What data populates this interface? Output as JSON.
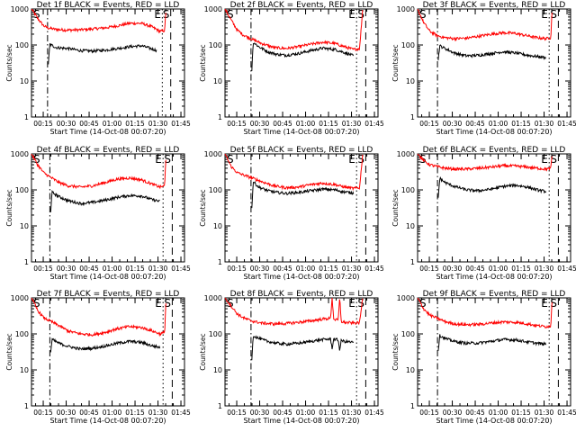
{
  "figure": {
    "colors": {
      "events": "#000000",
      "lld": "#ff0000",
      "axes": "#000000"
    },
    "y_tick_labels": [
      "1",
      "10",
      "100",
      "1000"
    ],
    "x_tick_labels": [
      "00:15",
      "00:30",
      "00:45",
      "01:00",
      "01:15",
      "01:30",
      "01:45"
    ]
  },
  "chart_data": [
    {
      "type": "line",
      "title": "Det 1f BLACK = Events, RED = LLD",
      "xlabel": "Start Time (14-Oct-08 00:07:20)",
      "ylabel": "Counts/sec",
      "yscale": "log",
      "ylim": [
        1,
        1000
      ],
      "xlim_minutes_after_start": [
        0,
        100
      ],
      "x_ticks_minutes_after_start": [
        7.67,
        22.67,
        37.67,
        52.67,
        67.67,
        82.67,
        97.67
      ],
      "markers": [
        {
          "label": "S",
          "t": 0.0,
          "style": "dash"
        },
        {
          "label": "",
          "t": 10.5,
          "style": "dashdot"
        },
        {
          "label": "E",
          "t": 85.5,
          "style": "dot"
        },
        {
          "label": "S",
          "t": 91.0,
          "style": "dash"
        }
      ],
      "series": [
        {
          "name": "LLD",
          "color": "#ff0000",
          "x": [
            0,
            4,
            8,
            10.5,
            16,
            24,
            32,
            40,
            48,
            56,
            64,
            72,
            78,
            84,
            87,
            88
          ],
          "y": [
            1000,
            550,
            340,
            300,
            270,
            260,
            265,
            280,
            300,
            340,
            400,
            400,
            330,
            240,
            250,
            1000
          ]
        },
        {
          "name": "Events",
          "color": "#000000",
          "x": [
            11,
            12,
            16,
            24,
            32,
            40,
            48,
            56,
            64,
            72,
            78,
            82
          ],
          "y": [
            30,
            105,
            85,
            80,
            70,
            68,
            72,
            80,
            90,
            95,
            80,
            70
          ]
        }
      ]
    },
    {
      "type": "line",
      "title": "Det 2f BLACK = Events, RED = LLD",
      "xlabel": "Start Time (14-Oct-08 00:07:20)",
      "ylabel": "Counts/sec",
      "yscale": "log",
      "ylim": [
        1,
        1000
      ],
      "xlim_minutes_after_start": [
        0,
        100
      ],
      "x_ticks_minutes_after_start": [
        7.67,
        22.67,
        37.67,
        52.67,
        67.67,
        82.67,
        97.67
      ],
      "markers": [
        {
          "label": "S",
          "t": 0.0,
          "style": "dash"
        },
        {
          "label": "",
          "t": 17.0,
          "style": "dashdot"
        },
        {
          "label": "E",
          "t": 86.0,
          "style": "dot"
        },
        {
          "label": "S",
          "t": 92.0,
          "style": "dash"
        }
      ],
      "series": [
        {
          "name": "LLD",
          "color": "#ff0000",
          "x": [
            0,
            4,
            8,
            12,
            17,
            24,
            32,
            40,
            48,
            56,
            64,
            72,
            78,
            84,
            88,
            90
          ],
          "y": [
            1000,
            500,
            260,
            190,
            150,
            110,
            85,
            80,
            90,
            105,
            120,
            110,
            90,
            75,
            80,
            1000
          ]
        },
        {
          "name": "Events",
          "color": "#000000",
          "x": [
            17.5,
            18.5,
            22,
            28,
            34,
            40,
            48,
            56,
            64,
            72,
            78,
            84
          ],
          "y": [
            20,
            120,
            90,
            65,
            55,
            52,
            58,
            70,
            82,
            75,
            62,
            50
          ]
        }
      ]
    },
    {
      "type": "line",
      "title": "Det 3f BLACK = Events, RED = LLD",
      "xlabel": "Start Time (14-Oct-08 00:07:20)",
      "ylabel": "Counts/sec",
      "yscale": "log",
      "ylim": [
        1,
        1000
      ],
      "xlim_minutes_after_start": [
        0,
        100
      ],
      "x_ticks_minutes_after_start": [
        7.67,
        22.67,
        37.67,
        52.67,
        67.67,
        82.67,
        97.67
      ],
      "markers": [
        {
          "label": "S",
          "t": 0.0,
          "style": "dash"
        },
        {
          "label": "",
          "t": 13.0,
          "style": "dashdot"
        },
        {
          "label": "E",
          "t": 86.0,
          "style": "dot"
        },
        {
          "label": "S",
          "t": 92.0,
          "style": "dash"
        }
      ],
      "series": [
        {
          "name": "LLD",
          "color": "#ff0000",
          "x": [
            0,
            4,
            8,
            13,
            18,
            24,
            32,
            40,
            48,
            56,
            64,
            72,
            78,
            84,
            87,
            88
          ],
          "y": [
            1000,
            420,
            240,
            180,
            160,
            150,
            155,
            175,
            200,
            220,
            210,
            180,
            160,
            150,
            160,
            1000
          ]
        },
        {
          "name": "Events",
          "color": "#000000",
          "x": [
            13.5,
            14.5,
            18,
            24,
            32,
            40,
            48,
            56,
            64,
            72,
            78,
            84
          ],
          "y": [
            40,
            95,
            80,
            60,
            50,
            52,
            58,
            65,
            60,
            52,
            48,
            45
          ]
        }
      ]
    },
    {
      "type": "line",
      "title": "Det 4f BLACK = Events, RED = LLD",
      "xlabel": "Start Time (14-Oct-08 00:07:20)",
      "ylabel": "Counts/sec",
      "yscale": "log",
      "ylim": [
        1,
        1000
      ],
      "xlim_minutes_after_start": [
        0,
        100
      ],
      "x_ticks_minutes_after_start": [
        7.67,
        22.67,
        37.67,
        52.67,
        67.67,
        82.67,
        97.67
      ],
      "markers": [
        {
          "label": "S",
          "t": 0.0,
          "style": "dash"
        },
        {
          "label": "",
          "t": 12.0,
          "style": "dashdot"
        },
        {
          "label": "E",
          "t": 86.0,
          "style": "dot"
        },
        {
          "label": "S",
          "t": 92.0,
          "style": "dash"
        }
      ],
      "series": [
        {
          "name": "LLD",
          "color": "#ff0000",
          "x": [
            0,
            4,
            8,
            12,
            18,
            24,
            32,
            40,
            48,
            56,
            64,
            72,
            78,
            84,
            87,
            88
          ],
          "y": [
            1000,
            500,
            300,
            230,
            160,
            130,
            120,
            130,
            160,
            200,
            215,
            190,
            150,
            120,
            130,
            1000
          ]
        },
        {
          "name": "Events",
          "color": "#000000",
          "x": [
            12.5,
            13.5,
            18,
            24,
            32,
            40,
            48,
            56,
            64,
            72,
            78,
            84
          ],
          "y": [
            25,
            85,
            65,
            50,
            42,
            45,
            52,
            62,
            70,
            68,
            55,
            48
          ]
        }
      ]
    },
    {
      "type": "line",
      "title": "Det 5f BLACK = Events, RED = LLD",
      "xlabel": "Start Time (14-Oct-08 00:07:20)",
      "ylabel": "Counts/sec",
      "yscale": "log",
      "ylim": [
        1,
        1000
      ],
      "xlim_minutes_after_start": [
        0,
        100
      ],
      "x_ticks_minutes_after_start": [
        7.67,
        22.67,
        37.67,
        52.67,
        67.67,
        82.67,
        97.67
      ],
      "markers": [
        {
          "label": "S",
          "t": 0.0,
          "style": "dash"
        },
        {
          "label": "",
          "t": 17.0,
          "style": "dashdot"
        },
        {
          "label": "E",
          "t": 86.0,
          "style": "dot"
        },
        {
          "label": "S",
          "t": 92.0,
          "style": "dash"
        }
      ],
      "series": [
        {
          "name": "LLD",
          "color": "#ff0000",
          "x": [
            0,
            4,
            8,
            12,
            17,
            24,
            32,
            40,
            48,
            56,
            64,
            72,
            78,
            84,
            88,
            90
          ],
          "y": [
            1000,
            450,
            300,
            260,
            220,
            170,
            130,
            115,
            120,
            140,
            155,
            140,
            120,
            110,
            115,
            1000
          ]
        },
        {
          "name": "Events",
          "color": "#000000",
          "x": [
            17.5,
            18.5,
            22,
            28,
            34,
            40,
            48,
            56,
            64,
            72,
            78,
            84
          ],
          "y": [
            30,
            170,
            120,
            95,
            85,
            80,
            85,
            95,
            105,
            100,
            88,
            82
          ]
        }
      ]
    },
    {
      "type": "line",
      "title": "Det 6f BLACK = Events, RED = LLD",
      "xlabel": "Start Time (14-Oct-08 00:07:20)",
      "ylabel": "Counts/sec",
      "yscale": "log",
      "ylim": [
        1,
        1000
      ],
      "xlim_minutes_after_start": [
        0,
        100
      ],
      "x_ticks_minutes_after_start": [
        7.67,
        22.67,
        37.67,
        52.67,
        67.67,
        82.67,
        97.67
      ],
      "markers": [
        {
          "label": "S",
          "t": 0.0,
          "style": "dash"
        },
        {
          "label": "",
          "t": 13.0,
          "style": "dashdot"
        },
        {
          "label": "E",
          "t": 86.0,
          "style": "dot"
        },
        {
          "label": "S",
          "t": 92.0,
          "style": "dash"
        }
      ],
      "series": [
        {
          "name": "LLD",
          "color": "#ff0000",
          "x": [
            0,
            4,
            8,
            13,
            18,
            24,
            32,
            40,
            48,
            56,
            64,
            72,
            78,
            84,
            87,
            88
          ],
          "y": [
            1000,
            650,
            500,
            440,
            400,
            380,
            380,
            400,
            430,
            470,
            460,
            430,
            400,
            380,
            390,
            1000
          ]
        },
        {
          "name": "Events",
          "color": "#000000",
          "x": [
            13.5,
            14.5,
            18,
            24,
            32,
            40,
            48,
            56,
            64,
            72,
            78,
            84
          ],
          "y": [
            60,
            210,
            160,
            125,
            100,
            95,
            105,
            125,
            135,
            120,
            100,
            90
          ]
        }
      ]
    },
    {
      "type": "line",
      "title": "Det 7f BLACK = Events, RED = LLD",
      "xlabel": "Start Time (14-Oct-08 00:07:20)",
      "ylabel": "Counts/sec",
      "yscale": "log",
      "ylim": [
        1,
        1000
      ],
      "xlim_minutes_after_start": [
        0,
        100
      ],
      "x_ticks_minutes_after_start": [
        7.67,
        22.67,
        37.67,
        52.67,
        67.67,
        82.67,
        97.67
      ],
      "markers": [
        {
          "label": "S",
          "t": 0.0,
          "style": "dash"
        },
        {
          "label": "",
          "t": 12.0,
          "style": "dashdot"
        },
        {
          "label": "E",
          "t": 86.0,
          "style": "dot"
        },
        {
          "label": "S",
          "t": 92.0,
          "style": "dash"
        }
      ],
      "series": [
        {
          "name": "LLD",
          "color": "#ff0000",
          "x": [
            0,
            4,
            8,
            12,
            18,
            24,
            32,
            40,
            48,
            56,
            64,
            72,
            78,
            84,
            87,
            88
          ],
          "y": [
            1000,
            450,
            280,
            230,
            170,
            120,
            100,
            95,
            110,
            140,
            160,
            150,
            125,
            100,
            110,
            1000
          ]
        },
        {
          "name": "Events",
          "color": "#000000",
          "x": [
            12.5,
            13.5,
            18,
            24,
            32,
            40,
            48,
            56,
            64,
            72,
            78,
            84
          ],
          "y": [
            30,
            70,
            55,
            45,
            38,
            40,
            46,
            55,
            62,
            58,
            48,
            42
          ]
        }
      ]
    },
    {
      "type": "line",
      "title": "Det 8f BLACK = Events, RED = LLD",
      "xlabel": "Start Time (14-Oct-08 00:07:20)",
      "ylabel": "Counts/sec",
      "yscale": "log",
      "ylim": [
        1,
        1000
      ],
      "xlim_minutes_after_start": [
        0,
        100
      ],
      "x_ticks_minutes_after_start": [
        7.67,
        22.67,
        37.67,
        52.67,
        67.67,
        82.67,
        97.67
      ],
      "markers": [
        {
          "label": "S",
          "t": 0.0,
          "style": "dash"
        },
        {
          "label": "",
          "t": 17.0,
          "style": "dashdot"
        },
        {
          "label": "E",
          "t": 86.0,
          "style": "dot"
        },
        {
          "label": "S",
          "t": 92.0,
          "style": "dash"
        }
      ],
      "series": [
        {
          "name": "LLD",
          "color": "#ff0000",
          "x": [
            0,
            4,
            8,
            12,
            17,
            24,
            32,
            40,
            48,
            56,
            64,
            69,
            70,
            71,
            72,
            74,
            75,
            76,
            78,
            84,
            88,
            90
          ],
          "y": [
            1000,
            600,
            360,
            280,
            230,
            200,
            190,
            195,
            210,
            230,
            260,
            270,
            1000,
            270,
            250,
            240,
            1000,
            220,
            210,
            200,
            205,
            1000
          ]
        },
        {
          "name": "Events",
          "color": "#000000",
          "x": [
            17.5,
            18.5,
            22,
            28,
            34,
            40,
            48,
            56,
            64,
            69,
            70,
            71,
            72,
            74,
            75,
            76,
            78,
            84
          ],
          "y": [
            20,
            90,
            75,
            62,
            55,
            52,
            55,
            62,
            70,
            72,
            40,
            72,
            70,
            68,
            35,
            66,
            62,
            58
          ]
        }
      ]
    },
    {
      "type": "line",
      "title": "Det 9f BLACK = Events, RED = LLD",
      "xlabel": "Start Time (14-Oct-08 00:07:20)",
      "ylabel": "Counts/sec",
      "yscale": "log",
      "ylim": [
        1,
        1000
      ],
      "xlim_minutes_after_start": [
        0,
        100
      ],
      "x_ticks_minutes_after_start": [
        7.67,
        22.67,
        37.67,
        52.67,
        67.67,
        82.67,
        97.67
      ],
      "markers": [
        {
          "label": "S",
          "t": 0.0,
          "style": "dash"
        },
        {
          "label": "",
          "t": 13.0,
          "style": "dashdot"
        },
        {
          "label": "E",
          "t": 86.0,
          "style": "dot"
        },
        {
          "label": "S",
          "t": 92.0,
          "style": "dash"
        }
      ],
      "series": [
        {
          "name": "LLD",
          "color": "#ff0000",
          "x": [
            0,
            4,
            8,
            13,
            18,
            24,
            32,
            40,
            48,
            56,
            64,
            72,
            78,
            84,
            87,
            88
          ],
          "y": [
            1000,
            500,
            330,
            270,
            220,
            190,
            180,
            185,
            200,
            215,
            210,
            190,
            170,
            160,
            165,
            1000
          ]
        },
        {
          "name": "Events",
          "color": "#000000",
          "x": [
            13.5,
            14.5,
            18,
            24,
            32,
            40,
            48,
            56,
            64,
            72,
            78,
            84
          ],
          "y": [
            35,
            90,
            75,
            62,
            55,
            56,
            62,
            70,
            68,
            60,
            55,
            52
          ]
        }
      ]
    }
  ]
}
